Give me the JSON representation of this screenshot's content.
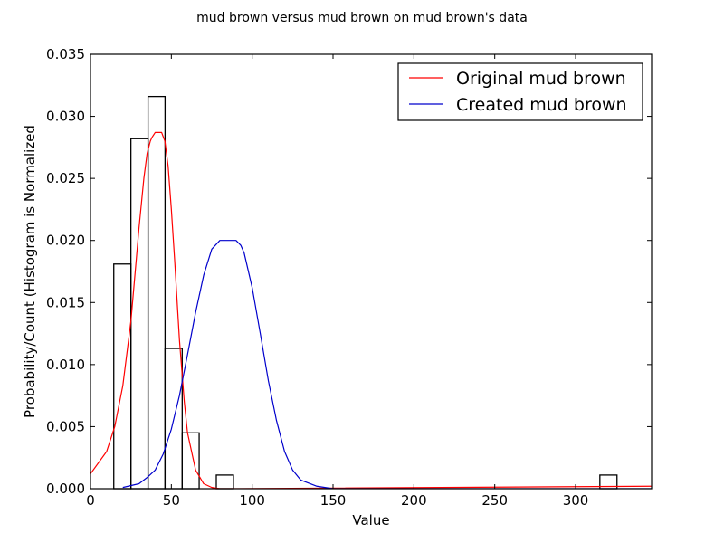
{
  "chart_data": {
    "type": "bar",
    "title": "mud brown versus mud brown on mud brown's data",
    "xlabel": "Value",
    "ylabel": "Probability/Count (Histogram is Normalized",
    "xlim": [
      0,
      347
    ],
    "ylim": [
      0,
      0.035
    ],
    "x_ticks": [
      0,
      50,
      100,
      150,
      200,
      250,
      300
    ],
    "x_tick_labels": [
      "0",
      "50",
      "100",
      "150",
      "200",
      "250",
      "300"
    ],
    "y_ticks": [
      0.0,
      0.005,
      0.01,
      0.015,
      0.02,
      0.025,
      0.03,
      0.035
    ],
    "y_tick_labels": [
      "0.000",
      "0.005",
      "0.010",
      "0.015",
      "0.020",
      "0.025",
      "0.030",
      "0.035"
    ],
    "grid": false,
    "legend": "top-right",
    "histogram": {
      "bins": [
        {
          "x0": 14.4,
          "x1": 25.0,
          "value": 0.0181
        },
        {
          "x0": 25.0,
          "x1": 35.6,
          "value": 0.0282
        },
        {
          "x0": 35.6,
          "x1": 46.1,
          "value": 0.0316
        },
        {
          "x0": 46.1,
          "x1": 56.7,
          "value": 0.0113
        },
        {
          "x0": 56.7,
          "x1": 67.2,
          "value": 0.0045
        },
        {
          "x0": 67.2,
          "x1": 77.8,
          "value": 0.0
        },
        {
          "x0": 77.8,
          "x1": 88.4,
          "value": 0.0011
        },
        {
          "x0": 315.0,
          "x1": 325.6,
          "value": 0.0011
        }
      ],
      "color": "#000000"
    },
    "series": [
      {
        "name": "Original mud brown",
        "color": "#ff0000",
        "x": [
          0,
          10,
          15,
          20,
          25,
          28,
          30,
          33,
          35,
          37,
          38,
          40,
          42,
          44,
          46,
          48,
          50,
          52,
          55,
          58,
          60,
          65,
          70,
          75,
          80,
          90,
          347
        ],
        "y": [
          0.0012,
          0.003,
          0.005,
          0.0083,
          0.0135,
          0.018,
          0.021,
          0.025,
          0.027,
          0.028,
          0.0283,
          0.0287,
          0.0287,
          0.0287,
          0.028,
          0.026,
          0.0225,
          0.0185,
          0.012,
          0.007,
          0.0045,
          0.0015,
          0.0004,
          0.0001,
          0.0,
          0.0,
          0.0002
        ]
      },
      {
        "name": "Created mud brown",
        "color": "#0000cc",
        "x": [
          20,
          30,
          35,
          40,
          45,
          50,
          55,
          60,
          65,
          70,
          75,
          80,
          85,
          90,
          93,
          95,
          100,
          105,
          110,
          115,
          120,
          125,
          130,
          140,
          150,
          160,
          347
        ],
        "y": [
          0.0001,
          0.0004,
          0.0009,
          0.0015,
          0.0028,
          0.0048,
          0.0075,
          0.0108,
          0.0142,
          0.0172,
          0.0193,
          0.02,
          0.02,
          0.02,
          0.0196,
          0.019,
          0.0162,
          0.0125,
          0.0087,
          0.0055,
          0.003,
          0.0015,
          0.0007,
          0.0002,
          0.0,
          0.0,
          0.0
        ]
      }
    ]
  }
}
